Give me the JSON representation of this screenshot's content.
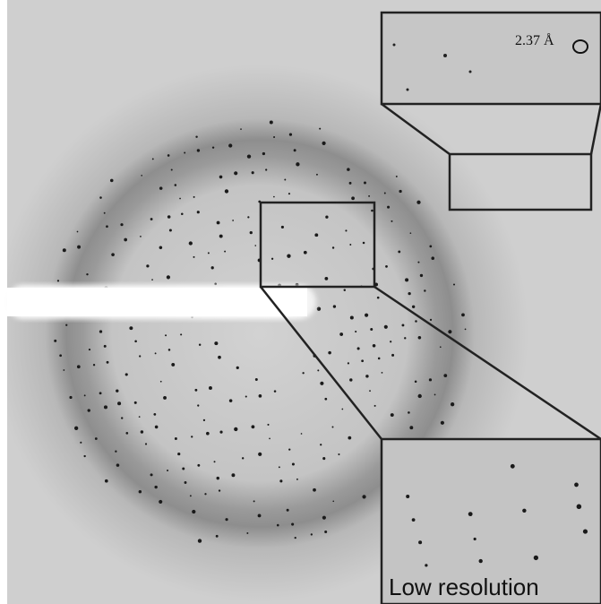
{
  "annotations": {
    "resolution_label": "2.37 Å",
    "inset_label": "Low resolution"
  }
}
